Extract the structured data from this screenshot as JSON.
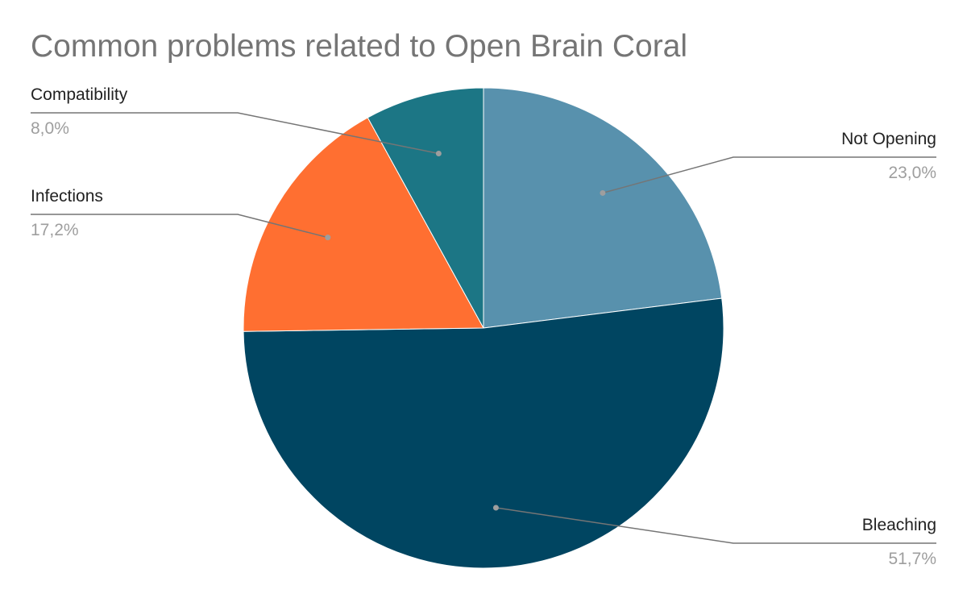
{
  "chart_data": {
    "type": "pie",
    "title": "Common problems related to Open Brain Coral",
    "start_angle_deg": 0,
    "direction": "clockwise",
    "slices": [
      {
        "label": "Not Opening",
        "value": 23.0,
        "display": "23,0%",
        "color": "#5891ad"
      },
      {
        "label": "Bleaching",
        "value": 51.7,
        "display": "51,7%",
        "color": "#004561"
      },
      {
        "label": "Infections",
        "value": 17.2,
        "display": "17,2%",
        "color": "#ff6f31"
      },
      {
        "label": "Compatibility",
        "value": 8.0,
        "display": "8,0%",
        "color": "#1c7685"
      }
    ],
    "label_sides": [
      "right",
      "right",
      "left",
      "left"
    ],
    "grid": false,
    "legend": "none"
  },
  "colors": {
    "title": "#757575",
    "label": "#222222",
    "percent": "#9e9e9e",
    "leader_line": "#757575",
    "leader_dot": "#9e9e9e",
    "slice_border": "#ffffff"
  }
}
